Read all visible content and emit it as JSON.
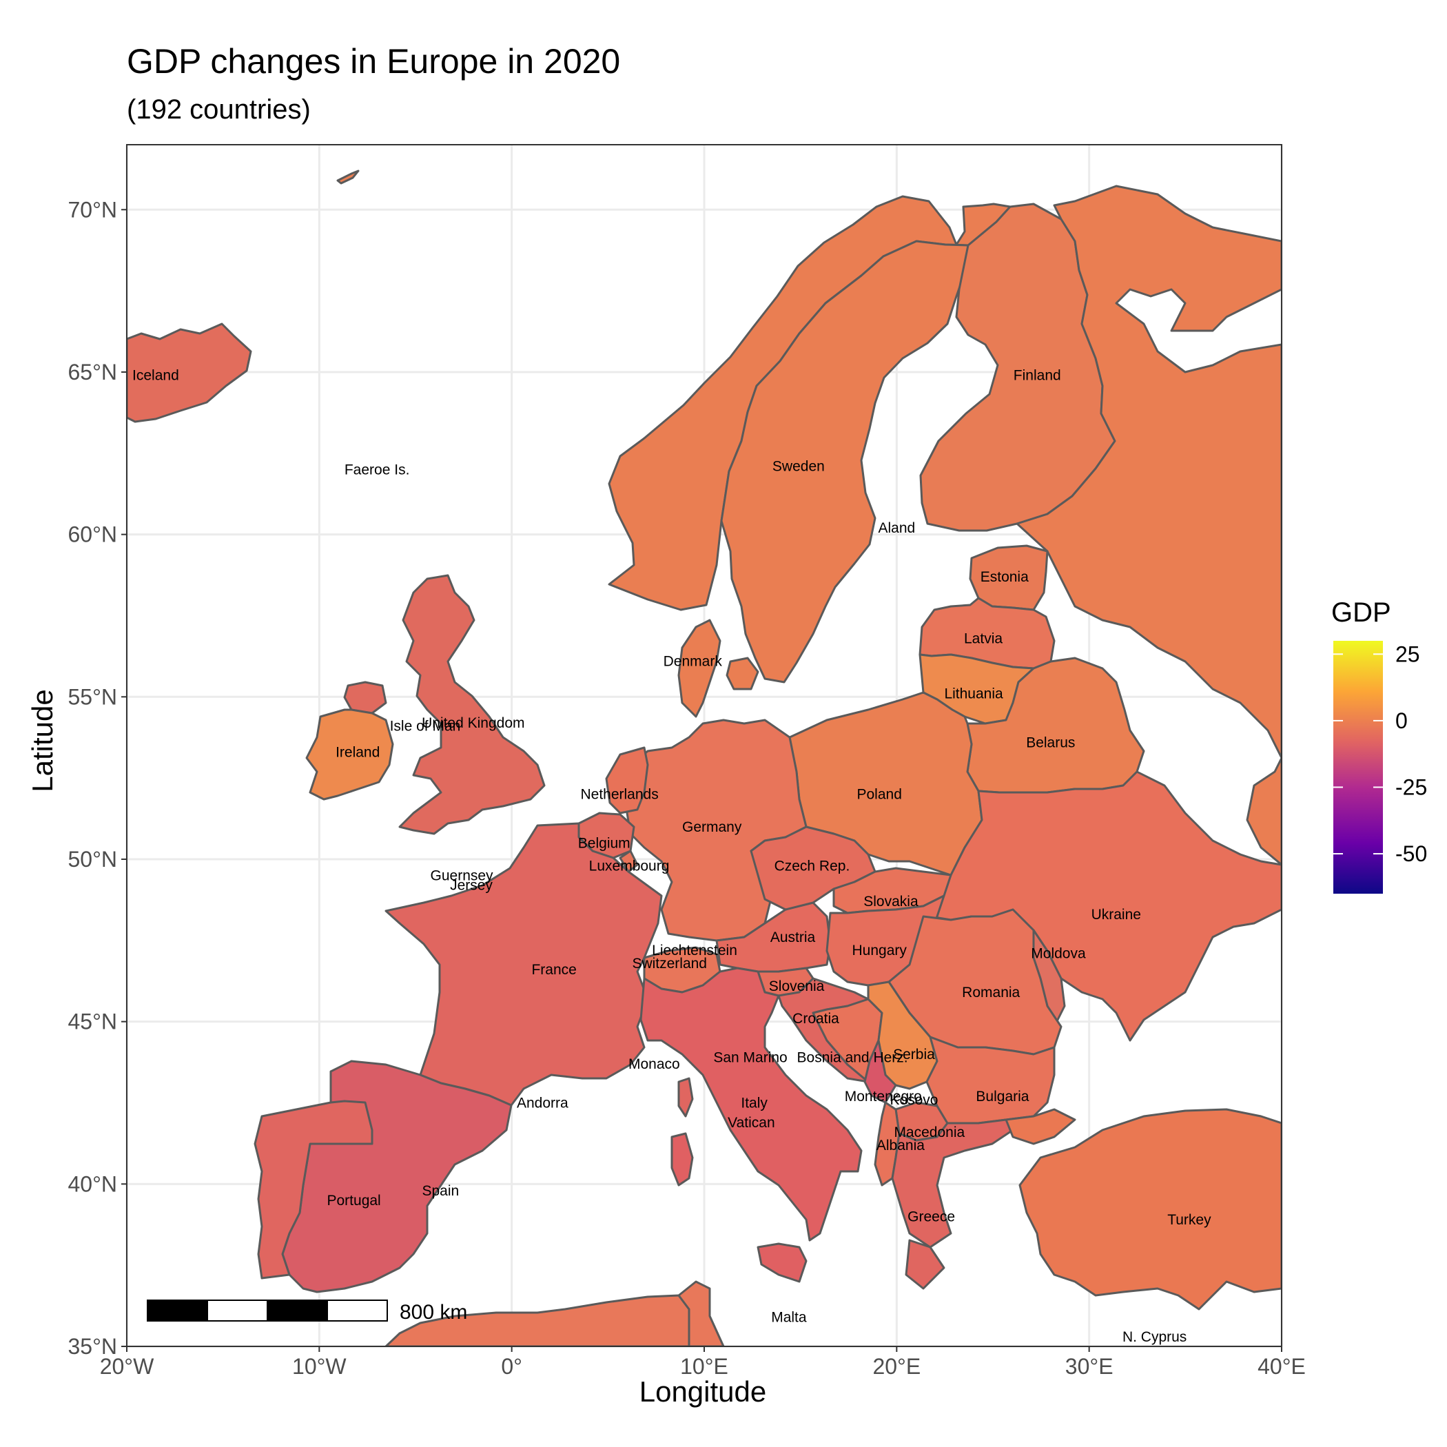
{
  "title": "GDP changes in Europe in 2020",
  "subtitle": "(192 countries)",
  "x_label": "Longitude",
  "y_label": "Latitude",
  "x_ticks": [
    {
      "value": -20,
      "label": "20°W"
    },
    {
      "value": -10,
      "label": "10°W"
    },
    {
      "value": 0,
      "label": "0°"
    },
    {
      "value": 10,
      "label": "10°E"
    },
    {
      "value": 20,
      "label": "20°E"
    },
    {
      "value": 30,
      "label": "30°E"
    },
    {
      "value": 40,
      "label": "40°E"
    }
  ],
  "y_ticks": [
    {
      "value": 35,
      "label": "35°N"
    },
    {
      "value": 40,
      "label": "40°N"
    },
    {
      "value": 45,
      "label": "45°N"
    },
    {
      "value": 50,
      "label": "50°N"
    },
    {
      "value": 55,
      "label": "55°N"
    },
    {
      "value": 60,
      "label": "60°N"
    },
    {
      "value": 65,
      "label": "65°N"
    },
    {
      "value": 70,
      "label": "70°N"
    }
  ],
  "legend": {
    "title": "GDP",
    "ticks": [
      {
        "value": 25,
        "label": "25"
      },
      {
        "value": 0,
        "label": "0"
      },
      {
        "value": -25,
        "label": "-25"
      },
      {
        "value": -50,
        "label": "-50"
      }
    ],
    "range": [
      -65,
      30
    ],
    "colors": [
      "#0d0887",
      "#6a00a8",
      "#b12a90",
      "#e16462",
      "#fca636",
      "#f0f921"
    ]
  },
  "scale_bar": {
    "label": "800 km"
  },
  "chart_data": {
    "type": "choropleth",
    "xlim": [
      -20,
      40
    ],
    "ylim": [
      35,
      72
    ],
    "fill_variable": "GDP",
    "color_scale": "plasma",
    "regions": [
      {
        "name": "Iceland",
        "lon": -18.5,
        "lat": 64.9,
        "gdp": -6.5
      },
      {
        "name": "Faeroe Is.",
        "lon": -7.0,
        "lat": 62.0
      },
      {
        "name": "Finland",
        "lon": 27.3,
        "lat": 64.9,
        "gdp": -2.9
      },
      {
        "name": "Sweden",
        "lon": 14.9,
        "lat": 62.1,
        "gdp": -2.2
      },
      {
        "name": "Aland",
        "lon": 20.0,
        "lat": 60.2
      },
      {
        "name": "Estonia",
        "lon": 25.6,
        "lat": 58.7,
        "gdp": -3.0
      },
      {
        "name": "Latvia",
        "lon": 24.5,
        "lat": 56.8,
        "gdp": -3.6
      },
      {
        "name": "Denmark",
        "lon": 9.4,
        "lat": 56.1,
        "gdp": -2.1
      },
      {
        "name": "Lithuania",
        "lon": 24.0,
        "lat": 55.1,
        "gdp": -0.1
      },
      {
        "name": "United Kingdom",
        "lon": -2.0,
        "lat": 54.2,
        "gdp": -9.3
      },
      {
        "name": "Isle of Man",
        "lon": -4.5,
        "lat": 54.1
      },
      {
        "name": "Ireland",
        "lon": -8.0,
        "lat": 53.3,
        "gdp": 5.9
      },
      {
        "name": "Belarus",
        "lon": 28.0,
        "lat": 53.6,
        "gdp": -0.9
      },
      {
        "name": "Netherlands",
        "lon": 5.6,
        "lat": 52.0,
        "gdp": -3.9
      },
      {
        "name": "Poland",
        "lon": 19.1,
        "lat": 52.0,
        "gdp": -2.0
      },
      {
        "name": "Germany",
        "lon": 10.4,
        "lat": 51.0,
        "gdp": -3.7
      },
      {
        "name": "Belgium",
        "lon": 4.8,
        "lat": 50.5,
        "gdp": -5.7
      },
      {
        "name": "Luxembourg",
        "lon": 6.1,
        "lat": 49.8,
        "gdp": -0.8
      },
      {
        "name": "Guernsey",
        "lon": -2.6,
        "lat": 49.5
      },
      {
        "name": "Jersey",
        "lon": -2.1,
        "lat": 49.2
      },
      {
        "name": "Czech Rep.",
        "lon": 15.6,
        "lat": 49.8,
        "gdp": -5.5
      },
      {
        "name": "Slovakia",
        "lon": 19.7,
        "lat": 48.7,
        "gdp": -3.3
      },
      {
        "name": "Ukraine",
        "lon": 31.4,
        "lat": 48.3,
        "gdp": -3.8
      },
      {
        "name": "Austria",
        "lon": 14.6,
        "lat": 47.6,
        "gdp": -6.7
      },
      {
        "name": "Liechtenstein",
        "lon": 9.5,
        "lat": 47.2
      },
      {
        "name": "Hungary",
        "lon": 19.1,
        "lat": 47.2,
        "gdp": -4.5
      },
      {
        "name": "Switzerland",
        "lon": 8.2,
        "lat": 46.8,
        "gdp": -2.4
      },
      {
        "name": "France",
        "lon": 2.2,
        "lat": 46.6,
        "gdp": -7.8
      },
      {
        "name": "Moldova",
        "lon": 28.4,
        "lat": 47.1,
        "gdp": -8.3
      },
      {
        "name": "Slovenia",
        "lon": 14.8,
        "lat": 46.1,
        "gdp": -4.3
      },
      {
        "name": "Romania",
        "lon": 24.9,
        "lat": 45.9,
        "gdp": -3.7
      },
      {
        "name": "Croatia",
        "lon": 15.8,
        "lat": 45.1,
        "gdp": -8.5
      },
      {
        "name": "Serbia",
        "lon": 20.9,
        "lat": 44.0,
        "gdp": -0.9
      },
      {
        "name": "Monaco",
        "lon": 7.4,
        "lat": 43.7
      },
      {
        "name": "San Marino",
        "lon": 12.4,
        "lat": 43.9
      },
      {
        "name": "Bosnia and Herz.",
        "lon": 17.7,
        "lat": 43.9,
        "gdp": -3.1
      },
      {
        "name": "Montenegro",
        "lon": 19.3,
        "lat": 42.7,
        "gdp": -15.3
      },
      {
        "name": "Kosovo",
        "lon": 20.9,
        "lat": 42.6
      },
      {
        "name": "Bulgaria",
        "lon": 25.5,
        "lat": 42.7,
        "gdp": -4.4
      },
      {
        "name": "Andorra",
        "lon": 1.6,
        "lat": 42.5
      },
      {
        "name": "Italy",
        "lon": 12.6,
        "lat": 42.5,
        "gdp": -9.0
      },
      {
        "name": "Vatican",
        "lon": 12.45,
        "lat": 41.9
      },
      {
        "name": "Macedonia",
        "lon": 21.7,
        "lat": 41.6,
        "gdp": -6.1
      },
      {
        "name": "Albania",
        "lon": 20.2,
        "lat": 41.2,
        "gdp": -3.5
      },
      {
        "name": "Portugal",
        "lon": -8.2,
        "lat": 39.5,
        "gdp": -8.4
      },
      {
        "name": "Spain",
        "lon": -3.7,
        "lat": 39.8,
        "gdp": -11.3
      },
      {
        "name": "Greece",
        "lon": 21.8,
        "lat": 39.0,
        "gdp": -9.0
      },
      {
        "name": "Turkey",
        "lon": 35.2,
        "lat": 38.9,
        "gdp": 1.8
      },
      {
        "name": "Malta",
        "lon": 14.4,
        "lat": 35.9,
        "gdp": -8.3
      },
      {
        "name": "N. Cyprus",
        "lon": 33.4,
        "lat": 35.3
      }
    ]
  }
}
